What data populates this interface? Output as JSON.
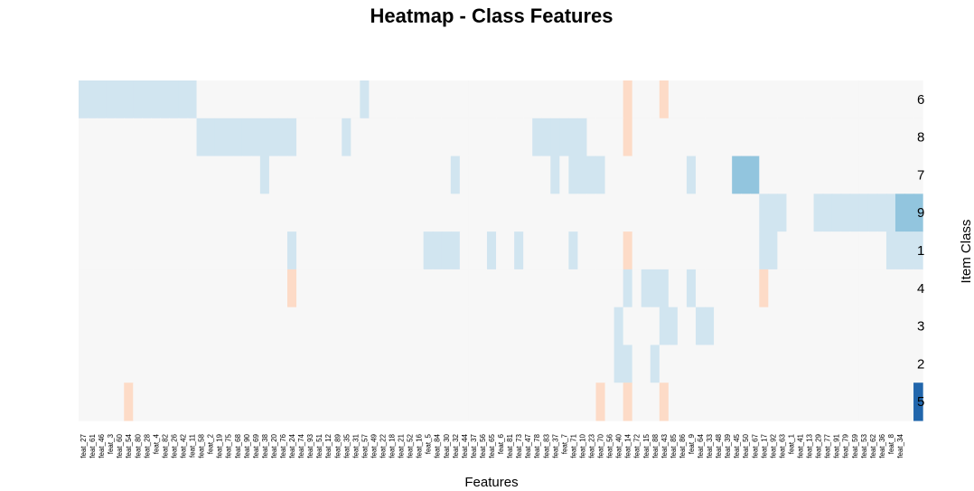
{
  "chart_data": {
    "type": "heatmap",
    "title": "Heatmap - Class Features",
    "xlabel": "Features",
    "ylabel": "Item Class",
    "rows": [
      "6",
      "8",
      "7",
      "9",
      "1",
      "4",
      "3",
      "2",
      "5"
    ],
    "columns": [
      "feat_27",
      "feat_61",
      "feat_46",
      "feat_3",
      "feat_60",
      "feat_54",
      "feat_80",
      "feat_28",
      "feat_4",
      "feat_82",
      "feat_26",
      "feat_42",
      "feat_11",
      "feat_58",
      "feat_2",
      "feat_19",
      "feat_75",
      "feat_68",
      "feat_90",
      "feat_69",
      "feat_38",
      "feat_20",
      "feat_76",
      "feat_24",
      "feat_74",
      "feat_93",
      "feat_51",
      "feat_12",
      "feat_89",
      "feat_35",
      "feat_31",
      "feat_57",
      "feat_49",
      "feat_22",
      "feat_18",
      "feat_21",
      "feat_52",
      "feat_16",
      "feat_5",
      "feat_84",
      "feat_30",
      "feat_32",
      "feat_44",
      "feat_37",
      "feat_56",
      "feat_65",
      "feat_6",
      "feat_81",
      "feat_73",
      "feat_47",
      "feat_78",
      "feat_83",
      "feat_37",
      "feat_7",
      "feat_71",
      "feat_10",
      "feat_23",
      "feat_70",
      "feat_56",
      "feat_40",
      "feat_14",
      "feat_72",
      "feat_15",
      "feat_88",
      "feat_43",
      "feat_85",
      "feat_86",
      "feat_9",
      "feat_64",
      "feat_33",
      "feat_48",
      "feat_39",
      "feat_45",
      "feat_50",
      "feat_67",
      "feat_17",
      "feat_92",
      "feat_63",
      "feat_1",
      "feat_41",
      "feat_13",
      "feat_29",
      "feat_77",
      "feat_91",
      "feat_79",
      "feat_59",
      "feat_53",
      "feat_62",
      "feat_36",
      "feat_8",
      "feat_34"
    ],
    "values": [
      [
        1,
        1,
        1,
        1,
        1,
        1,
        1,
        1,
        1,
        1,
        1,
        1,
        1,
        0,
        0,
        0,
        0,
        0,
        0,
        0,
        0,
        0,
        0,
        0,
        0,
        0,
        0,
        0,
        0,
        0,
        0,
        1,
        0,
        0,
        0,
        0,
        0,
        0,
        0,
        0,
        0,
        0,
        0,
        0,
        0,
        0,
        0,
        0,
        0,
        0,
        0,
        0,
        0,
        0,
        0,
        0,
        0,
        0,
        0,
        0,
        -1,
        0,
        0,
        0,
        -1,
        0,
        0,
        0,
        0,
        0,
        0,
        0,
        0,
        0,
        0,
        0,
        0,
        0,
        0,
        0,
        0,
        0,
        0,
        0,
        0,
        0,
        0,
        0,
        0,
        0,
        0,
        0,
        0
      ],
      [
        0,
        0,
        0,
        0,
        0,
        0,
        0,
        0,
        0,
        0,
        0,
        0,
        0,
        1,
        1,
        1,
        1,
        1,
        1,
        1,
        1,
        1,
        1,
        1,
        0,
        0,
        0,
        0,
        0,
        1,
        0,
        0,
        0,
        0,
        0,
        0,
        0,
        0,
        0,
        0,
        0,
        0,
        0,
        0,
        0,
        0,
        0,
        0,
        0,
        0,
        1,
        1,
        1,
        1,
        1,
        1,
        0,
        0,
        0,
        0,
        -1,
        0,
        0,
        0,
        0,
        0,
        0,
        0,
        0,
        0,
        0,
        0,
        0,
        0,
        0,
        0,
        0,
        0,
        0,
        0,
        0,
        0,
        0,
        0,
        0,
        0,
        0,
        0,
        0,
        0,
        0,
        0,
        0
      ],
      [
        0,
        0,
        0,
        0,
        0,
        0,
        0,
        0,
        0,
        0,
        0,
        0,
        0,
        0,
        0,
        0,
        0,
        0,
        0,
        0,
        1,
        0,
        0,
        0,
        0,
        0,
        0,
        0,
        0,
        0,
        0,
        0,
        0,
        0,
        0,
        0,
        0,
        0,
        0,
        0,
        0,
        1,
        0,
        0,
        0,
        0,
        0,
        0,
        0,
        0,
        0,
        0,
        1,
        0,
        1,
        1,
        1,
        1,
        0,
        0,
        0,
        0,
        0,
        0,
        0,
        0,
        0,
        1,
        0,
        0,
        0,
        0,
        2,
        2,
        2,
        0,
        0,
        0,
        0,
        0,
        0,
        0,
        0,
        0,
        0,
        0,
        0,
        0,
        0,
        0,
        0,
        0,
        0
      ],
      [
        0,
        0,
        0,
        0,
        0,
        0,
        0,
        0,
        0,
        0,
        0,
        0,
        0,
        0,
        0,
        0,
        0,
        0,
        0,
        0,
        0,
        0,
        0,
        0,
        0,
        0,
        0,
        0,
        0,
        0,
        0,
        0,
        0,
        0,
        0,
        0,
        0,
        0,
        0,
        0,
        0,
        0,
        0,
        0,
        0,
        0,
        0,
        0,
        0,
        0,
        0,
        0,
        0,
        0,
        0,
        0,
        0,
        0,
        0,
        0,
        0,
        0,
        0,
        0,
        0,
        0,
        0,
        0,
        0,
        0,
        0,
        0,
        0,
        0,
        0,
        1,
        1,
        1,
        0,
        0,
        0,
        1,
        1,
        1,
        1,
        1,
        1,
        1,
        1,
        1,
        2,
        2,
        2
      ],
      [
        0,
        0,
        0,
        0,
        0,
        0,
        0,
        0,
        0,
        0,
        0,
        0,
        0,
        0,
        0,
        0,
        0,
        0,
        0,
        0,
        0,
        0,
        0,
        1,
        0,
        0,
        0,
        0,
        0,
        0,
        0,
        0,
        0,
        0,
        0,
        0,
        0,
        0,
        1,
        1,
        1,
        1,
        0,
        0,
        0,
        1,
        0,
        0,
        1,
        0,
        0,
        0,
        0,
        0,
        1,
        0,
        0,
        0,
        0,
        0,
        -1,
        0,
        0,
        0,
        0,
        0,
        0,
        0,
        0,
        0,
        0,
        0,
        0,
        0,
        0,
        1,
        1,
        0,
        0,
        0,
        0,
        0,
        0,
        0,
        0,
        0,
        0,
        0,
        0,
        1,
        1,
        1,
        1
      ],
      [
        0,
        0,
        0,
        0,
        0,
        0,
        0,
        0,
        0,
        0,
        0,
        0,
        0,
        0,
        0,
        0,
        0,
        0,
        0,
        0,
        0,
        0,
        0,
        -1,
        0,
        0,
        0,
        0,
        0,
        0,
        0,
        0,
        0,
        0,
        0,
        0,
        0,
        0,
        0,
        0,
        0,
        0,
        0,
        0,
        0,
        0,
        0,
        0,
        0,
        0,
        0,
        0,
        0,
        0,
        0,
        0,
        0,
        0,
        0,
        0,
        1,
        0,
        1,
        1,
        1,
        0,
        0,
        1,
        0,
        0,
        0,
        0,
        0,
        0,
        0,
        -1,
        0,
        0,
        0,
        0,
        0,
        0,
        0,
        0,
        0,
        0,
        0,
        0,
        0,
        0,
        0,
        0,
        0
      ],
      [
        0,
        0,
        0,
        0,
        0,
        0,
        0,
        0,
        0,
        0,
        0,
        0,
        0,
        0,
        0,
        0,
        0,
        0,
        0,
        0,
        0,
        0,
        0,
        0,
        0,
        0,
        0,
        0,
        0,
        0,
        0,
        0,
        0,
        0,
        0,
        0,
        0,
        0,
        0,
        0,
        0,
        0,
        0,
        0,
        0,
        0,
        0,
        0,
        0,
        0,
        0,
        0,
        0,
        0,
        0,
        0,
        0,
        0,
        0,
        1,
        0,
        0,
        0,
        0,
        1,
        1,
        0,
        0,
        1,
        1,
        0,
        0,
        0,
        0,
        0,
        0,
        0,
        0,
        0,
        0,
        0,
        0,
        0,
        0,
        0,
        0,
        0,
        0,
        0,
        0,
        0,
        0,
        0
      ],
      [
        0,
        0,
        0,
        0,
        0,
        0,
        0,
        0,
        0,
        0,
        0,
        0,
        0,
        0,
        0,
        0,
        0,
        0,
        0,
        0,
        0,
        0,
        0,
        0,
        0,
        0,
        0,
        0,
        0,
        0,
        0,
        0,
        0,
        0,
        0,
        0,
        0,
        0,
        0,
        0,
        0,
        0,
        0,
        0,
        0,
        0,
        0,
        0,
        0,
        0,
        0,
        0,
        0,
        0,
        0,
        0,
        0,
        0,
        0,
        1,
        1,
        0,
        0,
        1,
        0,
        0,
        0,
        0,
        0,
        0,
        0,
        0,
        0,
        0,
        0,
        0,
        0,
        0,
        0,
        0,
        0,
        0,
        0,
        0,
        0,
        0,
        0,
        0,
        0,
        0,
        0,
        0,
        0
      ],
      [
        0,
        0,
        0,
        0,
        0,
        -1,
        0,
        0,
        0,
        0,
        0,
        0,
        0,
        0,
        0,
        0,
        0,
        0,
        0,
        0,
        0,
        0,
        0,
        0,
        0,
        0,
        0,
        0,
        0,
        0,
        0,
        0,
        0,
        0,
        0,
        0,
        0,
        0,
        0,
        0,
        0,
        0,
        0,
        0,
        0,
        0,
        0,
        0,
        0,
        0,
        0,
        0,
        0,
        0,
        0,
        0,
        0,
        -1,
        0,
        0,
        -1,
        0,
        0,
        0,
        -1,
        0,
        0,
        0,
        0,
        0,
        0,
        0,
        0,
        0,
        0,
        0,
        0,
        0,
        0,
        0,
        0,
        0,
        0,
        0,
        0,
        0,
        0,
        0,
        0,
        0,
        0,
        0,
        4
      ]
    ],
    "colormap": {
      "-1": "#fddbc7",
      "0": "#f7f7f7",
      "1": "#d1e5f0",
      "2": "#92c5de",
      "3": "#4393c3",
      "4": "#2166ac"
    },
    "grid": false,
    "legend": "none"
  }
}
